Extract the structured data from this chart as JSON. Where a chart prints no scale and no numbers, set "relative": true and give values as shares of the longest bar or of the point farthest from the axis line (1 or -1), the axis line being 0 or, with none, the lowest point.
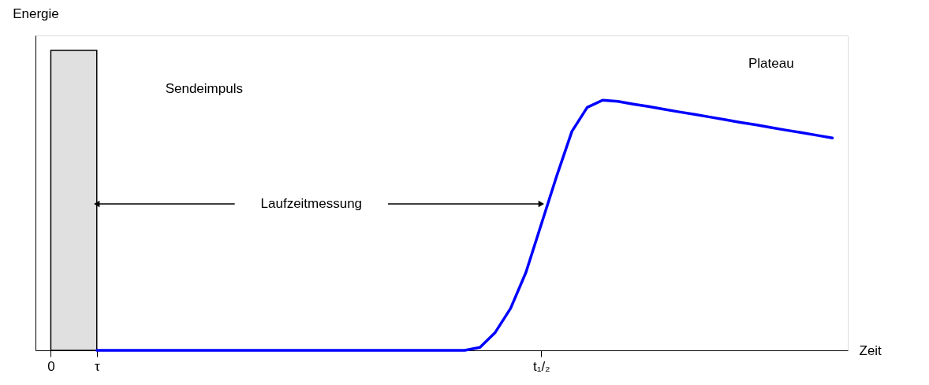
{
  "chart_data": {
    "type": "line",
    "relative": true,
    "xlabel": "Zeit",
    "ylabel": "Energie",
    "categories": [
      "0",
      null,
      null,
      "τ",
      null,
      null,
      null,
      null,
      null,
      null,
      null,
      null,
      null,
      null,
      null,
      null,
      null,
      null,
      null,
      null,
      null,
      null,
      null,
      null,
      null,
      null,
      null,
      null,
      null,
      null,
      null,
      null,
      "t₁/₂",
      null,
      null,
      null,
      null,
      null,
      null,
      null,
      null,
      null,
      null,
      null,
      null,
      null,
      null,
      null,
      null,
      null,
      null,
      null
    ],
    "tick_labels": "x",
    "grid": false,
    "series": [
      {
        "type": "area",
        "color": "#e0e0e0",
        "values": [
          1,
          1,
          1,
          1,
          null,
          null,
          null,
          null,
          null,
          null,
          null,
          null,
          null,
          null,
          null,
          null,
          null,
          null,
          null,
          null,
          null,
          null,
          null,
          null,
          null,
          null,
          null,
          null,
          null,
          null,
          null,
          null,
          null,
          null,
          null,
          null,
          null,
          null,
          null,
          null,
          null,
          null,
          null,
          null,
          null,
          null,
          null,
          null,
          null,
          null,
          null,
          null
        ]
      },
      {
        "color": "#0000ff",
        "values": [
          null,
          null,
          null,
          0,
          0,
          0,
          0,
          0,
          0,
          0,
          0,
          0,
          0,
          0,
          0,
          0,
          0,
          0,
          0,
          0,
          0,
          0,
          0,
          0,
          0,
          0,
          0,
          0,
          0.01,
          0.06,
          0.14,
          0.26,
          0.42,
          0.58,
          0.73,
          0.81,
          0.834,
          0.83,
          0.821,
          0.813,
          0.804,
          0.795,
          0.787,
          0.778,
          0.769,
          0.76,
          0.752,
          0.743,
          0.734,
          0.726,
          0.717,
          0.708
        ]
      }
    ],
    "annotations": [
      "Sendeimpuls",
      "Laufzeitmessung",
      "Plateau"
    ]
  }
}
